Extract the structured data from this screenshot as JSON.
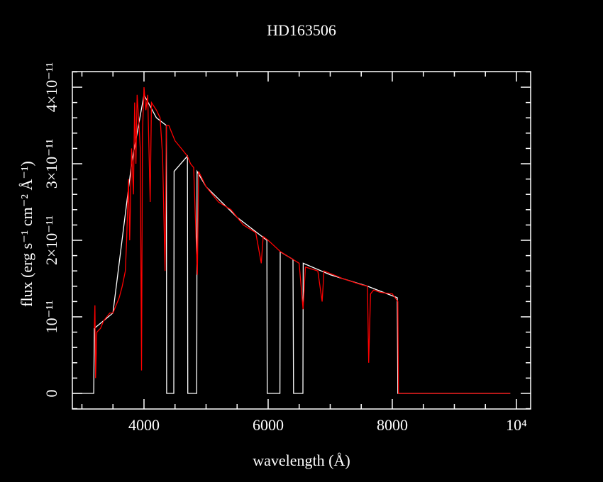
{
  "chart_data": {
    "type": "line",
    "title": "HD163506",
    "x_label": "wavelength (Å)",
    "y_label": "flux (erg s⁻¹ cm⁻² Å⁻¹)",
    "xlim": [
      2846,
      10229
    ],
    "ylim": [
      -2.04e-12,
      4.204e-11
    ],
    "xticks": [
      4000,
      6000,
      8000,
      {
        "value": 10000,
        "label": "10⁴"
      }
    ],
    "yticks": [
      0,
      {
        "value": 1e-11,
        "label": "10⁻¹¹"
      },
      {
        "value": 2e-11,
        "label": "2×10⁻¹¹"
      },
      {
        "value": 3e-11,
        "label": "3×10⁻¹¹"
      },
      {
        "value": 4e-11,
        "label": "4×10⁻¹¹"
      }
    ],
    "x_minor_ticks": [
      3000,
      3500,
      4500,
      5000,
      5500,
      6500,
      7000,
      7500,
      8500,
      9000,
      9500
    ],
    "y_minor_ticks": [
      -2e-12,
      2e-12,
      4e-12,
      6e-12,
      8e-12,
      1.2e-11,
      1.4e-11,
      1.6e-11,
      1.8e-11,
      2.2e-11,
      2.4e-11,
      2.6e-11,
      2.8e-11,
      3.2e-11,
      3.4e-11,
      3.6e-11,
      3.8e-11,
      4.2e-11
    ],
    "series": [
      {
        "color": "#ffffff",
        "x": [
          2846,
          3190,
          3200,
          3500,
          3800,
          4000,
          4200,
          4360,
          4365,
          4480,
          4485,
          4700,
          4705,
          4850,
          4855,
          5000,
          5500,
          5980,
          5985,
          6190,
          6195,
          6400,
          6410,
          6560,
          6565,
          7000,
          7600,
          8080,
          8090,
          9900
        ],
        "values": [
          0,
          0,
          8.5e-12,
          1.05e-11,
          3e-11,
          3.9e-11,
          3.6e-11,
          3.5e-11,
          0,
          0,
          2.9e-11,
          3.1e-11,
          0,
          0,
          2.9e-11,
          2.7e-11,
          2.3e-11,
          2e-11,
          0,
          0,
          1.85e-11,
          1.75e-11,
          0,
          0,
          1.7e-11,
          1.55e-11,
          1.4e-11,
          1.25e-11,
          0,
          0
        ]
      },
      {
        "color": "#ff0000",
        "x": [
          3200,
          3210,
          3220,
          3240,
          3300,
          3350,
          3400,
          3450,
          3500,
          3550,
          3600,
          3650,
          3700,
          3720,
          3750,
          3770,
          3800,
          3830,
          3850,
          3870,
          3890,
          3920,
          3940,
          3960,
          3975,
          4000,
          4030,
          4060,
          4100,
          4120,
          4200,
          4260,
          4300,
          4340,
          4360,
          4400,
          4450,
          4500,
          4600,
          4700,
          4750,
          4800,
          4860,
          4880,
          5000,
          5200,
          5400,
          5600,
          5800,
          5890,
          5920,
          6000,
          6200,
          6300,
          6400,
          6500,
          6563,
          6600,
          6800,
          6870,
          6900,
          7200,
          7500,
          7600,
          7620,
          7650,
          7700,
          7800,
          8000,
          8090,
          8100,
          9900
        ],
        "values": [
          8.5e-12,
          1.15e-11,
          2e-12,
          8e-12,
          8.5e-12,
          9.5e-12,
          1e-11,
          1.05e-11,
          1.05e-11,
          1.15e-11,
          1.25e-11,
          1.4e-11,
          1.6e-11,
          2e-11,
          2.8e-11,
          2e-11,
          3.2e-11,
          2.6e-11,
          3.8e-11,
          3e-11,
          3.9e-11,
          3.5e-11,
          3.2e-11,
          3e-12,
          3.4e-11,
          4e-11,
          3.7e-11,
          3.9e-11,
          2.5e-11,
          3.8e-11,
          3.7e-11,
          3.6e-11,
          3.1e-11,
          1.6e-11,
          3.5e-11,
          3.5e-11,
          3.4e-11,
          3.3e-11,
          3.2e-11,
          3.1e-11,
          3e-11,
          2.95e-11,
          1.55e-11,
          2.9e-11,
          2.7e-11,
          2.5e-11,
          2.4e-11,
          2.2e-11,
          2.1e-11,
          1.7e-11,
          2.05e-11,
          2e-11,
          1.85e-11,
          1.8e-11,
          1.75e-11,
          1.7e-11,
          1.1e-11,
          1.65e-11,
          1.6e-11,
          1.2e-11,
          1.6e-11,
          1.5e-11,
          1.42e-11,
          1.4e-11,
          4e-12,
          1.3e-11,
          1.35e-11,
          1.32e-11,
          1.3e-11,
          1.2e-11,
          0,
          0
        ]
      }
    ]
  }
}
